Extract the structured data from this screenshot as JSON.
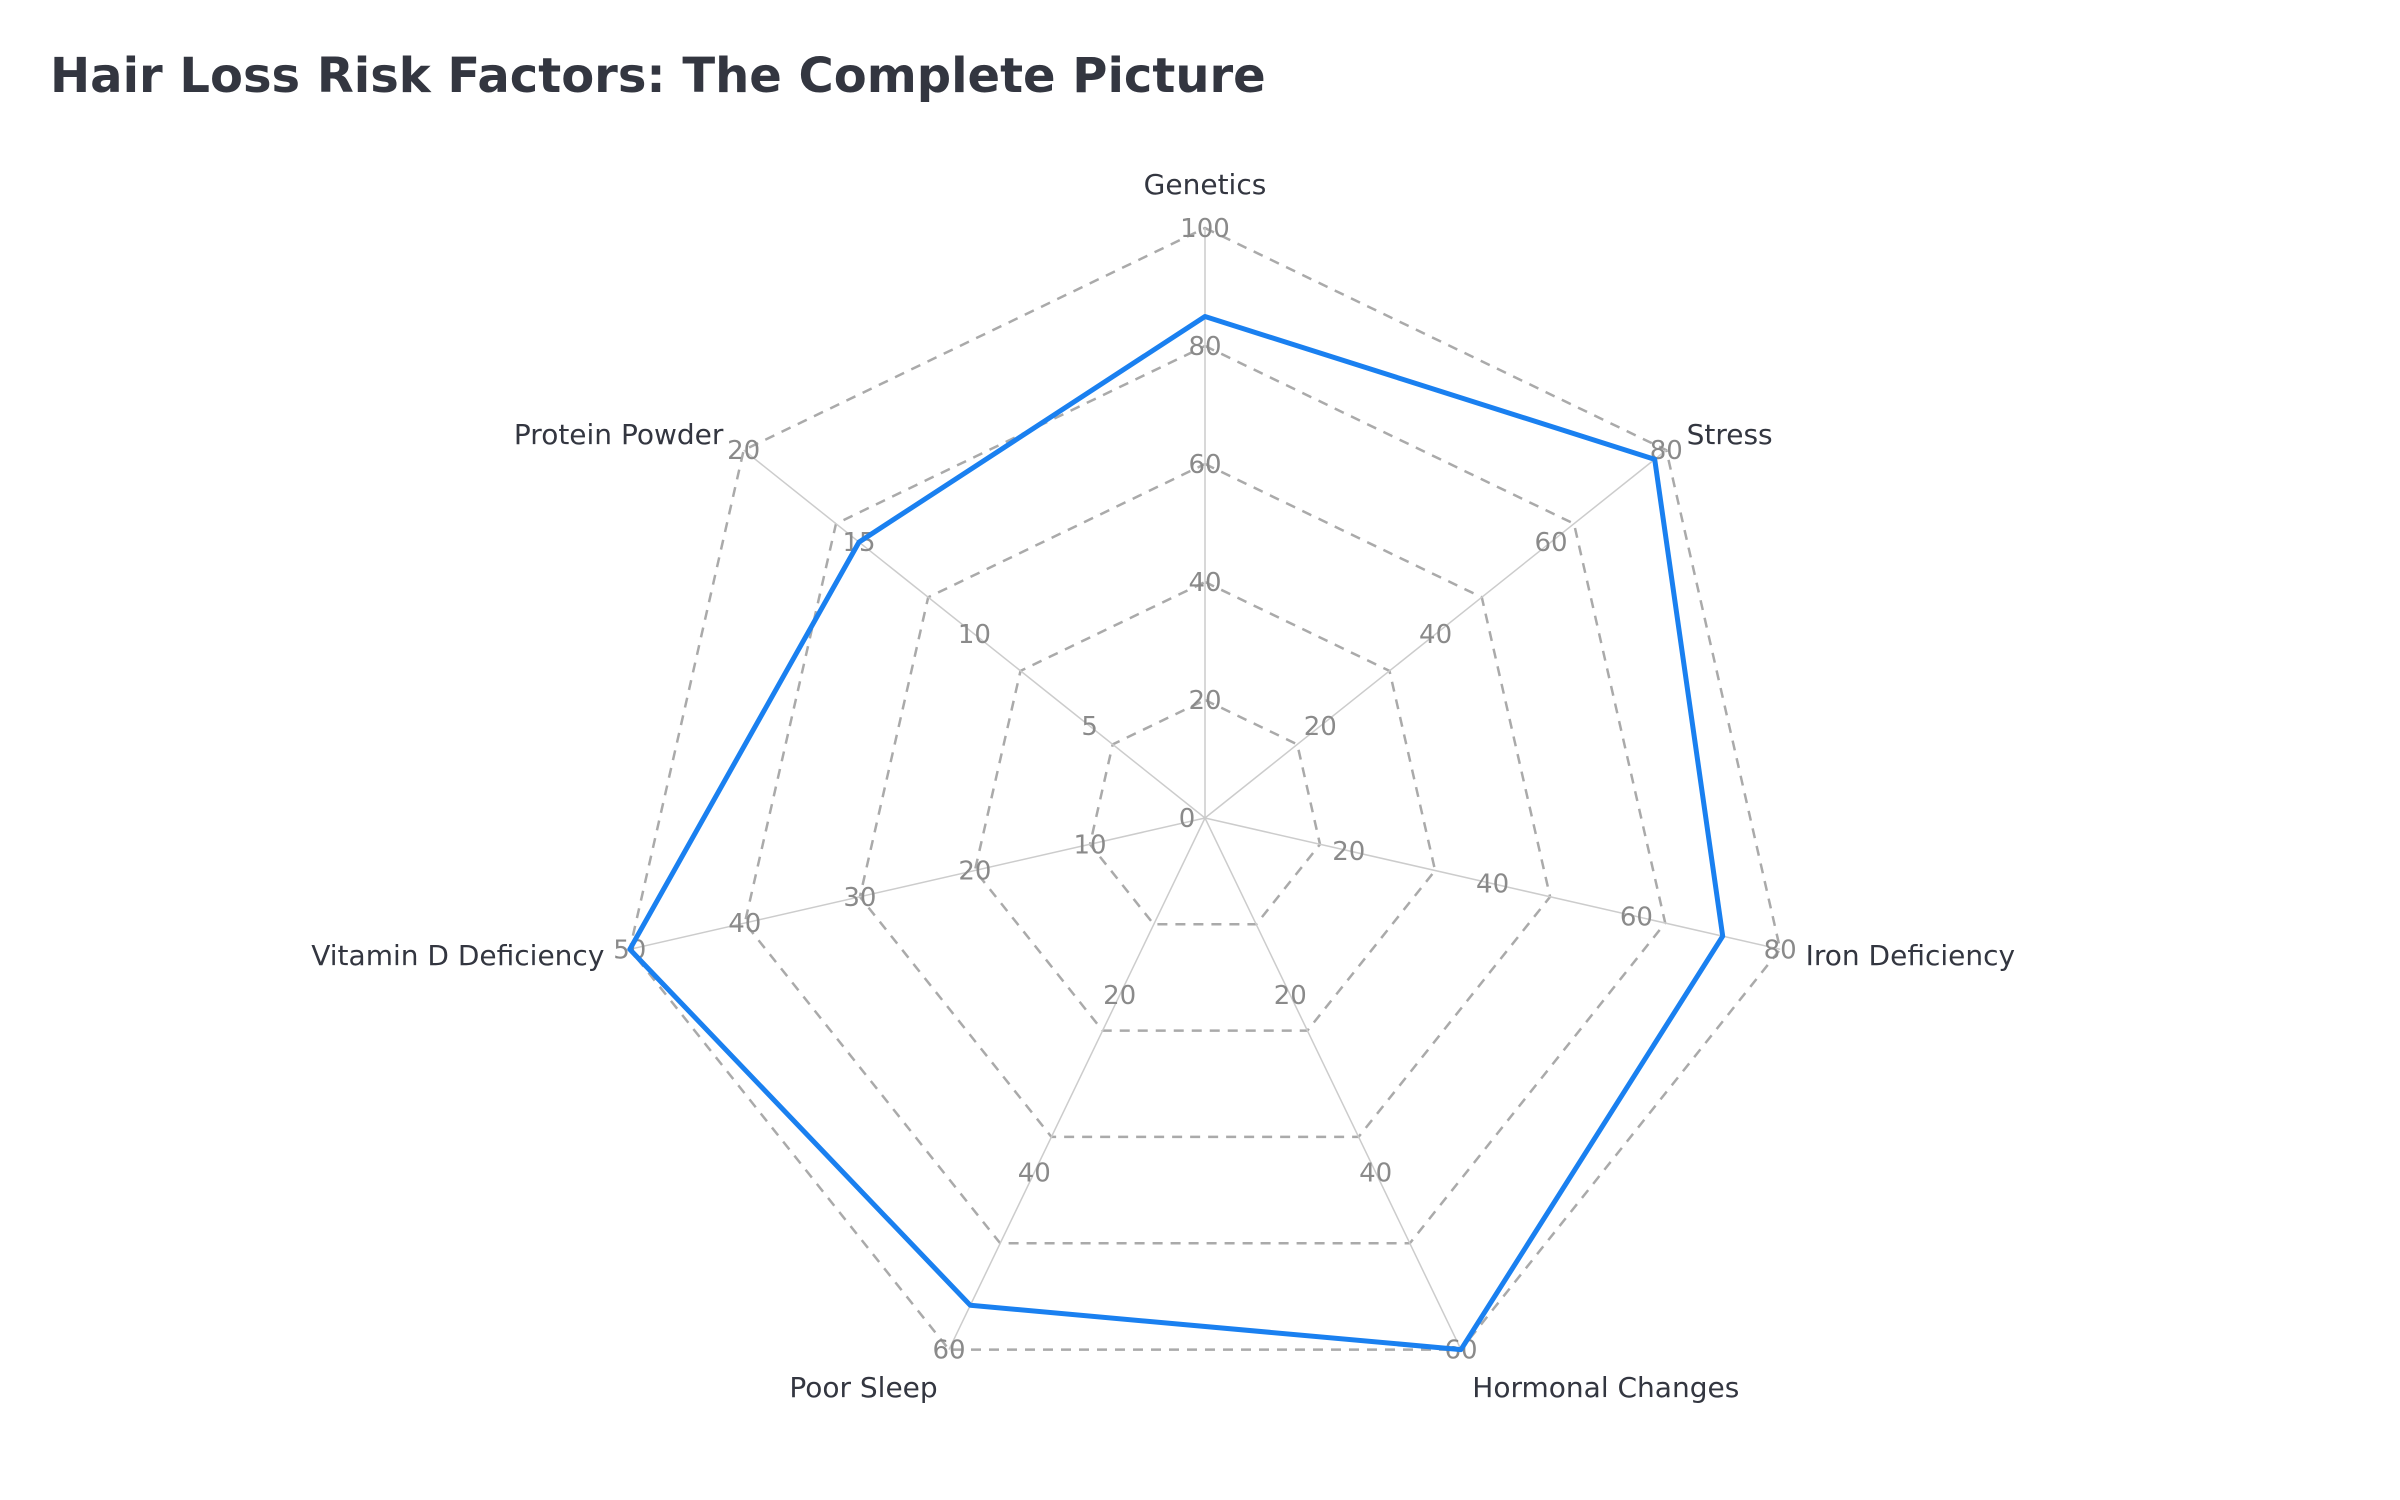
{
  "chart_data": {
    "type": "radar",
    "title": "Hair Loss Risk Factors: The Complete Picture",
    "center_tick": "0",
    "axes": [
      {
        "name": "Genetics",
        "max": 100,
        "ticks": [
          20,
          40,
          60,
          80,
          100
        ],
        "value": 85
      },
      {
        "name": "Stress",
        "max": 80,
        "ticks": [
          20,
          40,
          60,
          80
        ],
        "value": 78
      },
      {
        "name": "Iron Deficiency",
        "max": 80,
        "ticks": [
          20,
          40,
          60,
          80
        ],
        "value": 72
      },
      {
        "name": "Hormonal Changes",
        "max": 60,
        "ticks": [
          20,
          40,
          60
        ],
        "value": 60
      },
      {
        "name": "Poor Sleep",
        "max": 60,
        "ticks": [
          20,
          40,
          60
        ],
        "value": 55
      },
      {
        "name": "Vitamin D Deficiency",
        "max": 50,
        "ticks": [
          10,
          20,
          30,
          40,
          50
        ],
        "value": 50
      },
      {
        "name": "Protein Powder",
        "max": 20,
        "ticks": [
          5,
          10,
          15,
          20
        ],
        "value": 15
      }
    ],
    "grid_levels": 5,
    "grid": true,
    "legend": "none",
    "colors": {
      "series": "#1a80f0",
      "grid": "#aaaaaa",
      "spoke": "#cccccc",
      "text": "#333640",
      "tick": "#8a8a8a"
    }
  }
}
